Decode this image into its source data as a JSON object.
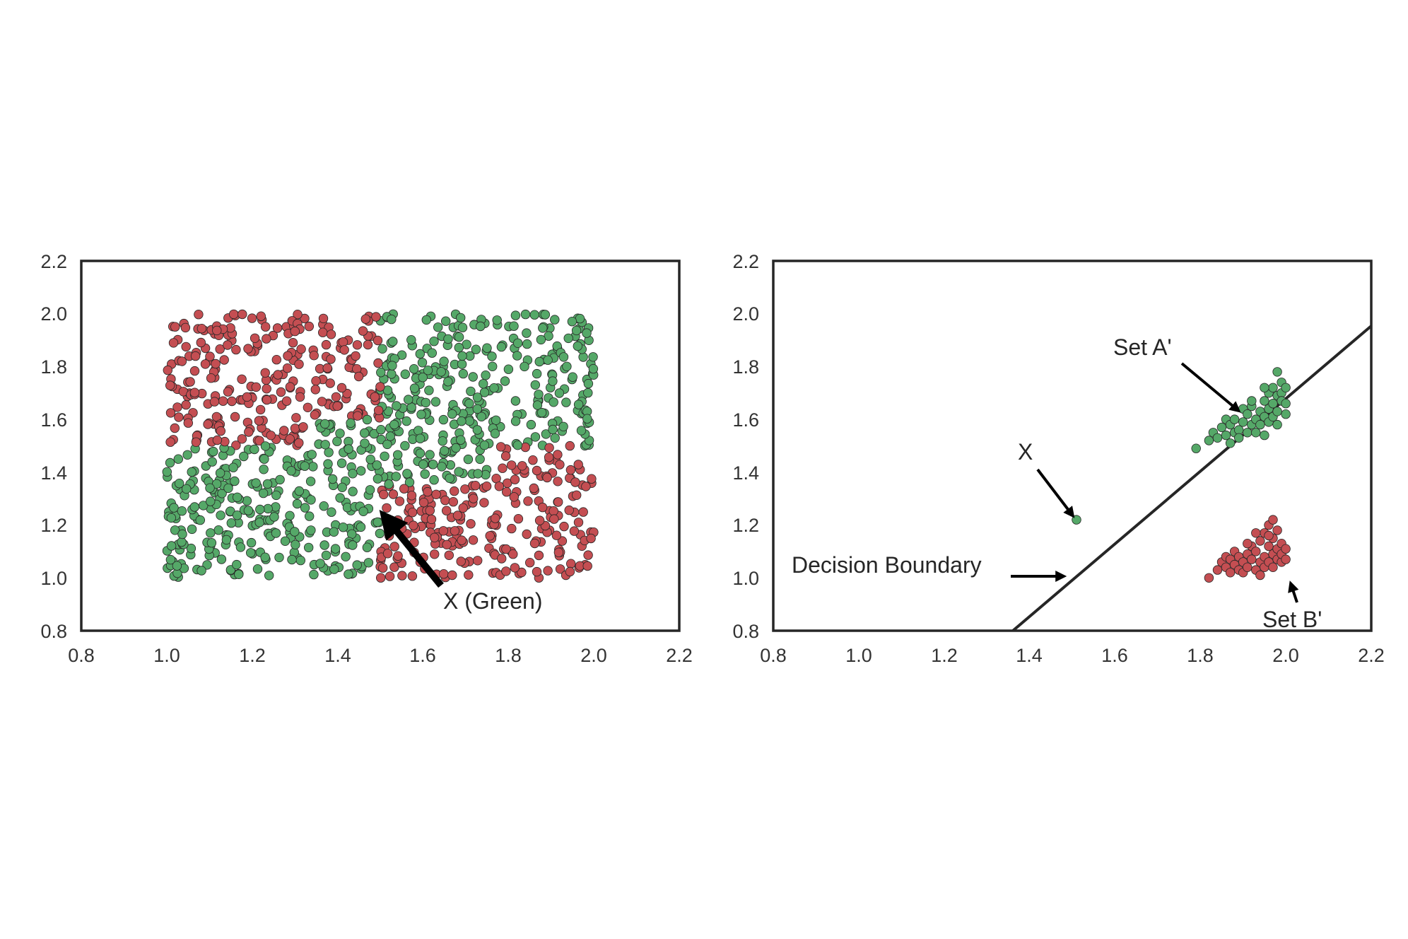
{
  "colors": {
    "red": "#c44e52",
    "green": "#55a868",
    "edge": "#262626",
    "axis": "#262626",
    "text": "#333333"
  },
  "chart_data": [
    {
      "type": "scatter",
      "title": "",
      "xlabel": "",
      "ylabel": "",
      "xlim": [
        0.8,
        2.2
      ],
      "ylim": [
        0.8,
        2.2
      ],
      "xticks": [
        "0.8",
        "1.0",
        "1.2",
        "1.4",
        "1.6",
        "1.8",
        "2.0",
        "2.2"
      ],
      "yticks": [
        "0.8",
        "1.0",
        "1.2",
        "1.4",
        "1.6",
        "1.8",
        "2.0",
        "2.2"
      ],
      "grid": false,
      "point_source": {
        "description": "uniform square [1,2]x[1,2] colored by region",
        "n": 1100,
        "x_range": [
          1.0,
          2.0
        ],
        "y_range": [
          1.0,
          2.0
        ],
        "rule": "green if (x < 1.5 and y < 1.5) or (x >= 1.5 and y >= 1.5), else red; band around the checker is green"
      },
      "annotations": [
        {
          "text": "X (Green)",
          "text_xy": [
            1.65,
            0.99
          ],
          "arrow_to": [
            1.51,
            1.22
          ]
        }
      ]
    },
    {
      "type": "scatter",
      "title": "",
      "xlabel": "",
      "ylabel": "",
      "xlim": [
        0.8,
        2.2
      ],
      "ylim": [
        0.8,
        2.2
      ],
      "xticks": [
        "0.8",
        "1.0",
        "1.2",
        "1.4",
        "1.6",
        "1.8",
        "2.0",
        "2.2"
      ],
      "yticks": [
        "0.8",
        "1.0",
        "1.2",
        "1.4",
        "1.6",
        "1.8",
        "2.0",
        "2.2"
      ],
      "grid": false,
      "line": {
        "x": [
          1.37,
          2.2
        ],
        "y": [
          0.8,
          1.94
        ]
      },
      "series": [
        {
          "color": "green",
          "points": [
            [
              1.51,
              1.22
            ],
            [
              1.79,
              1.49
            ],
            [
              1.82,
              1.52
            ],
            [
              1.83,
              1.55
            ],
            [
              1.84,
              1.53
            ],
            [
              1.85,
              1.57
            ],
            [
              1.86,
              1.6
            ],
            [
              1.86,
              1.54
            ],
            [
              1.87,
              1.51
            ],
            [
              1.87,
              1.58
            ],
            [
              1.88,
              1.55
            ],
            [
              1.88,
              1.6
            ],
            [
              1.89,
              1.56
            ],
            [
              1.89,
              1.53
            ],
            [
              1.9,
              1.59
            ],
            [
              1.9,
              1.64
            ],
            [
              1.91,
              1.55
            ],
            [
              1.91,
              1.62
            ],
            [
              1.92,
              1.65
            ],
            [
              1.92,
              1.58
            ],
            [
              1.93,
              1.6
            ],
            [
              1.93,
              1.55
            ],
            [
              1.94,
              1.63
            ],
            [
              1.94,
              1.58
            ],
            [
              1.95,
              1.67
            ],
            [
              1.95,
              1.61
            ],
            [
              1.95,
              1.54
            ],
            [
              1.96,
              1.7
            ],
            [
              1.96,
              1.64
            ],
            [
              1.96,
              1.59
            ],
            [
              1.97,
              1.72
            ],
            [
              1.97,
              1.66
            ],
            [
              1.97,
              1.61
            ],
            [
              1.98,
              1.69
            ],
            [
              1.98,
              1.63
            ],
            [
              1.98,
              1.58
            ],
            [
              1.99,
              1.74
            ],
            [
              1.99,
              1.7
            ],
            [
              1.99,
              1.67
            ],
            [
              2.0,
              1.72
            ],
            [
              2.0,
              1.66
            ],
            [
              2.0,
              1.62
            ],
            [
              1.98,
              1.78
            ],
            [
              1.95,
              1.72
            ],
            [
              1.92,
              1.67
            ]
          ]
        },
        {
          "color": "red",
          "points": [
            [
              1.82,
              1.0
            ],
            [
              1.84,
              1.03
            ],
            [
              1.85,
              1.06
            ],
            [
              1.86,
              1.04
            ],
            [
              1.86,
              1.08
            ],
            [
              1.87,
              1.02
            ],
            [
              1.87,
              1.07
            ],
            [
              1.88,
              1.05
            ],
            [
              1.88,
              1.1
            ],
            [
              1.89,
              1.03
            ],
            [
              1.89,
              1.08
            ],
            [
              1.9,
              1.06
            ],
            [
              1.9,
              1.02
            ],
            [
              1.91,
              1.09
            ],
            [
              1.91,
              1.04
            ],
            [
              1.92,
              1.07
            ],
            [
              1.92,
              1.12
            ],
            [
              1.93,
              1.03
            ],
            [
              1.93,
              1.1
            ],
            [
              1.94,
              1.06
            ],
            [
              1.94,
              1.14
            ],
            [
              1.95,
              1.08
            ],
            [
              1.95,
              1.04
            ],
            [
              1.95,
              1.17
            ],
            [
              1.96,
              1.12
            ],
            [
              1.96,
              1.06
            ],
            [
              1.96,
              1.2
            ],
            [
              1.97,
              1.09
            ],
            [
              1.97,
              1.15
            ],
            [
              1.97,
              1.04
            ],
            [
              1.98,
              1.11
            ],
            [
              1.98,
              1.18
            ],
            [
              1.98,
              1.07
            ],
            [
              1.99,
              1.13
            ],
            [
              1.99,
              1.06
            ],
            [
              1.99,
              1.09
            ],
            [
              2.0,
              1.11
            ],
            [
              2.0,
              1.07
            ],
            [
              1.97,
              1.22
            ],
            [
              1.94,
              1.01
            ],
            [
              1.96,
              1.16
            ],
            [
              1.91,
              1.13
            ],
            [
              1.93,
              1.17
            ]
          ]
        }
      ],
      "annotations": [
        {
          "text": "Set A'",
          "text_xy": [
            1.72,
            1.82
          ],
          "arrow_to": [
            1.9,
            1.64
          ]
        },
        {
          "text": "X",
          "text_xy": [
            1.49,
            1.45
          ],
          "arrow_to": [
            1.51,
            1.23
          ]
        },
        {
          "text": "Decision Boundary",
          "text_xy": [
            1.07,
            1.04
          ],
          "arrow_to": [
            1.49,
            0.99
          ]
        },
        {
          "text": "Set B'",
          "text_xy": [
            2.01,
            0.94
          ],
          "arrow_to": [
            1.97,
            1.0
          ]
        }
      ]
    }
  ]
}
